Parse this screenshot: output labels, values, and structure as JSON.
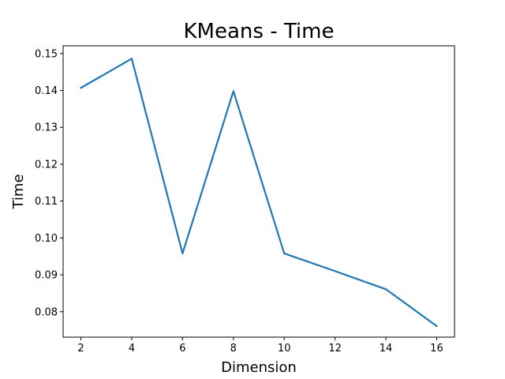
{
  "chart_data": {
    "type": "line",
    "title": "KMeans - Time",
    "xlabel": "Dimension",
    "ylabel": "Time",
    "x": [
      2,
      4,
      6,
      8,
      10,
      12,
      14,
      16
    ],
    "series": [
      {
        "values": [
          0.1407,
          0.1486,
          0.0958,
          0.1398,
          0.0958,
          0.091,
          0.0861,
          0.0761
        ]
      }
    ],
    "xlim": [
      1.3,
      16.7
    ],
    "ylim": [
      0.0731,
      0.1521
    ],
    "xticks": [
      2,
      4,
      6,
      8,
      10,
      12,
      14,
      16
    ],
    "yticks": [
      0.08,
      0.09,
      0.1,
      0.11,
      0.12,
      0.13,
      0.14,
      0.15
    ],
    "xtick_labels": [
      "2",
      "4",
      "6",
      "8",
      "10",
      "12",
      "14",
      "16"
    ],
    "ytick_labels": [
      "0.08",
      "0.09",
      "0.10",
      "0.11",
      "0.12",
      "0.13",
      "0.14",
      "0.15"
    ],
    "grid": false,
    "line_color": "#1f77b4"
  }
}
